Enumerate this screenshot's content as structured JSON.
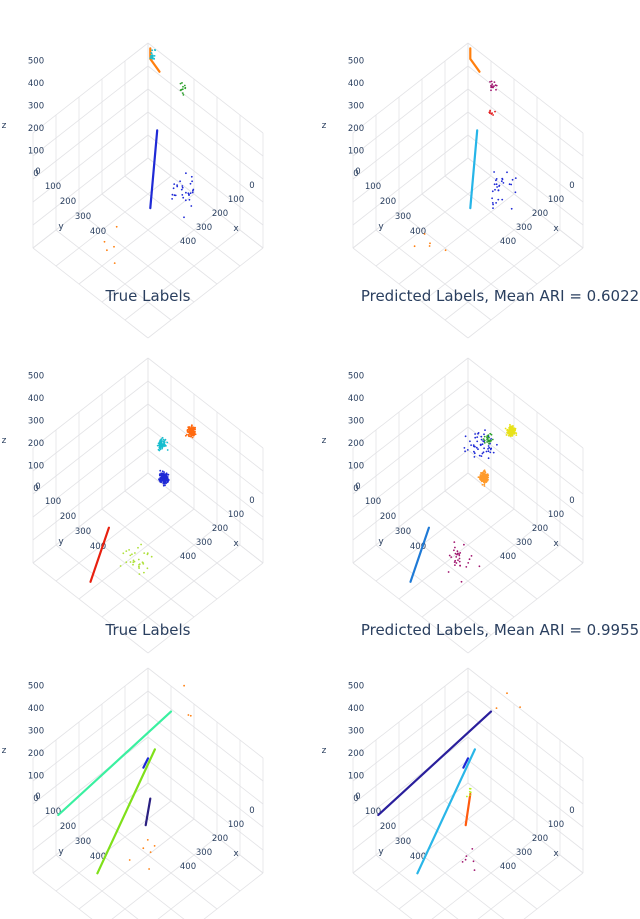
{
  "chart_data": [
    {
      "type": "scatter3d",
      "title": "",
      "xlabel": "x",
      "ylabel": "y",
      "zlabel": "z",
      "xticks": [
        "0",
        "100",
        "200",
        "300",
        "400"
      ],
      "yticks": [
        "0",
        "100",
        "200",
        "300",
        "400"
      ],
      "zticks": [
        "0",
        "100",
        "200",
        "300",
        "400",
        "500"
      ],
      "series": [
        {
          "color": "#1f2ad6",
          "kind": "line",
          "points": [
            [
              250,
              210,
              480
            ],
            [
              240,
              230,
              150
            ]
          ]
        },
        {
          "color": "#ff7f0e",
          "kind": "curve",
          "points": [
            [
              20,
              10,
              500
            ],
            [
              30,
              20,
              470
            ],
            [
              60,
              10,
              430
            ]
          ]
        },
        {
          "color": "#17becf",
          "kind": "cluster",
          "center": [
            40,
            20,
            490
          ],
          "n": 20
        },
        {
          "color": "#2ca02c",
          "kind": "cluster",
          "center": [
            200,
            50,
            500
          ],
          "n": 12
        },
        {
          "color": "#1f2ad6",
          "kind": "sparse",
          "center": [
            330,
            180,
            260
          ],
          "n": 30
        },
        {
          "color": "#ff7f0e",
          "kind": "sparse",
          "center": [
            230,
            390,
            110
          ],
          "n": 5
        }
      ]
    },
    {
      "type": "scatter3d",
      "title": "",
      "xlabel": "x",
      "ylabel": "y",
      "zlabel": "z",
      "xticks": [
        "0",
        "100",
        "200",
        "300",
        "400"
      ],
      "yticks": [
        "0",
        "100",
        "200",
        "300",
        "400"
      ],
      "zticks": [
        "0",
        "100",
        "200",
        "300",
        "400",
        "500"
      ],
      "series": [
        {
          "color": "#26b5e8",
          "kind": "line",
          "points": [
            [
              250,
              210,
              480
            ],
            [
              240,
              230,
              150
            ]
          ]
        },
        {
          "color": "#ff7f0e",
          "kind": "curve",
          "points": [
            [
              20,
              10,
              500
            ],
            [
              30,
              20,
              470
            ],
            [
              60,
              10,
              430
            ]
          ]
        },
        {
          "color": "#a0146e",
          "kind": "cluster",
          "center": [
            170,
            60,
            500
          ],
          "n": 14
        },
        {
          "color": "#e41a1c",
          "kind": "cluster",
          "center": [
            220,
            120,
            470
          ],
          "n": 8
        },
        {
          "color": "#1f2ad6",
          "kind": "sparse",
          "center": [
            330,
            180,
            260
          ],
          "n": 30
        },
        {
          "color": "#ff7f0e",
          "kind": "sparse",
          "center": [
            230,
            390,
            110
          ],
          "n": 5
        }
      ]
    },
    {
      "type": "scatter3d",
      "title": "True Labels",
      "xlabel": "x",
      "ylabel": "y",
      "zlabel": "z",
      "xticks": [
        "0",
        "100",
        "200",
        "300",
        "400"
      ],
      "yticks": [
        "0",
        "100",
        "200",
        "300",
        "400"
      ],
      "zticks": [
        "0",
        "100",
        "200",
        "300",
        "400",
        "500"
      ],
      "series": [
        {
          "color": "#ff6a10",
          "kind": "cluster",
          "center": [
            280,
            90,
            470
          ],
          "n": 120
        },
        {
          "color": "#1f2ad6",
          "kind": "cluster",
          "center": [
            240,
            170,
            300
          ],
          "n": 220
        },
        {
          "color": "#17becf",
          "kind": "cluster",
          "center": [
            180,
            120,
            360
          ],
          "n": 80
        },
        {
          "color": "#aee03a",
          "kind": "sparse",
          "center": [
            290,
            330,
            120
          ],
          "n": 30
        },
        {
          "color": "#e8200f",
          "kind": "line",
          "points": [
            [
              150,
              320,
              130
            ],
            [
              190,
              440,
              20
            ]
          ]
        }
      ]
    },
    {
      "type": "scatter3d",
      "title": "Predicted Labels, Mean ARI = 0.6022",
      "xlabel": "x",
      "ylabel": "y",
      "zlabel": "z",
      "xticks": [
        "0",
        "100",
        "200",
        "300",
        "400"
      ],
      "yticks": [
        "0",
        "100",
        "200",
        "300",
        "400"
      ],
      "zticks": [
        "0",
        "100",
        "200",
        "300",
        "400",
        "500"
      ],
      "series": [
        {
          "color": "#e8e21a",
          "kind": "cluster",
          "center": [
            280,
            90,
            470
          ],
          "n": 120
        },
        {
          "color": "#ff9a2a",
          "kind": "cluster",
          "center": [
            240,
            170,
            300
          ],
          "n": 220
        },
        {
          "color": "#1f2ad6",
          "kind": "sparse",
          "center": [
            180,
            120,
            360
          ],
          "n": 50
        },
        {
          "color": "#2ca02c",
          "kind": "cluster",
          "center": [
            200,
            110,
            390
          ],
          "n": 25
        },
        {
          "color": "#a0146e",
          "kind": "sparse",
          "center": [
            290,
            330,
            120
          ],
          "n": 30
        },
        {
          "color": "#1f7ad6",
          "kind": "line",
          "points": [
            [
              150,
              320,
              130
            ],
            [
              190,
              440,
              20
            ]
          ]
        }
      ]
    },
    {
      "type": "scatter3d",
      "title": "True Labels",
      "xlabel": "x",
      "ylabel": "y",
      "zlabel": "z",
      "xticks": [
        "0",
        "100",
        "200",
        "300",
        "400"
      ],
      "yticks": [
        "0",
        "100",
        "200",
        "300",
        "400"
      ],
      "zticks": [
        "0",
        "100",
        "200",
        "300",
        "400",
        "500"
      ],
      "series": [
        {
          "color": "#3af0a0",
          "kind": "line",
          "points": [
            [
              120,
              20,
              420
            ],
            [
              60,
              450,
              260
            ]
          ]
        },
        {
          "color": "#7fe01a",
          "kind": "line",
          "points": [
            [
              190,
              160,
              420
            ],
            [
              160,
              380,
              30
            ]
          ]
        },
        {
          "color": "#1f2ad6",
          "kind": "line",
          "points": [
            [
              200,
              200,
              420
            ],
            [
              190,
              210,
              380
            ]
          ]
        },
        {
          "color": "#2a1f80",
          "kind": "line",
          "points": [
            [
              240,
              230,
              300
            ],
            [
              240,
              250,
              200
            ]
          ]
        },
        {
          "color": "#ff7f0e",
          "kind": "sparse",
          "center": [
            300,
            290,
            130
          ],
          "n": 6
        },
        {
          "color": "#ff7f0e",
          "kind": "sparse",
          "center": [
            200,
            20,
            520
          ],
          "n": 3
        }
      ]
    },
    {
      "type": "scatter3d",
      "title": "Predicted Labels, Mean ARI = 0.9955",
      "xlabel": "x",
      "ylabel": "y",
      "zlabel": "z",
      "xticks": [
        "0",
        "100",
        "200",
        "300",
        "400"
      ],
      "yticks": [
        "0",
        "100",
        "200",
        "300",
        "400"
      ],
      "zticks": [
        "0",
        "100",
        "200",
        "300",
        "400",
        "500"
      ],
      "series": [
        {
          "color": "#2a1f9c",
          "kind": "line",
          "points": [
            [
              120,
              20,
              420
            ],
            [
              60,
              450,
              260
            ]
          ]
        },
        {
          "color": "#29b6e8",
          "kind": "line",
          "points": [
            [
              190,
              160,
              420
            ],
            [
              160,
              380,
              30
            ]
          ]
        },
        {
          "color": "#1f2ad6",
          "kind": "line",
          "points": [
            [
              200,
              200,
              420
            ],
            [
              190,
              210,
              380
            ]
          ]
        },
        {
          "color": "#ff5a0e",
          "kind": "line",
          "points": [
            [
              240,
              230,
              320
            ],
            [
              240,
              250,
              200
            ]
          ]
        },
        {
          "color": "#b3f020",
          "kind": "cluster",
          "center": [
            240,
            230,
            330
          ],
          "n": 6
        },
        {
          "color": "#a0146e",
          "kind": "sparse",
          "center": [
            300,
            290,
            130
          ],
          "n": 6
        },
        {
          "color": "#ff7f0e",
          "kind": "sparse",
          "center": [
            200,
            20,
            520
          ],
          "n": 3
        }
      ]
    }
  ]
}
